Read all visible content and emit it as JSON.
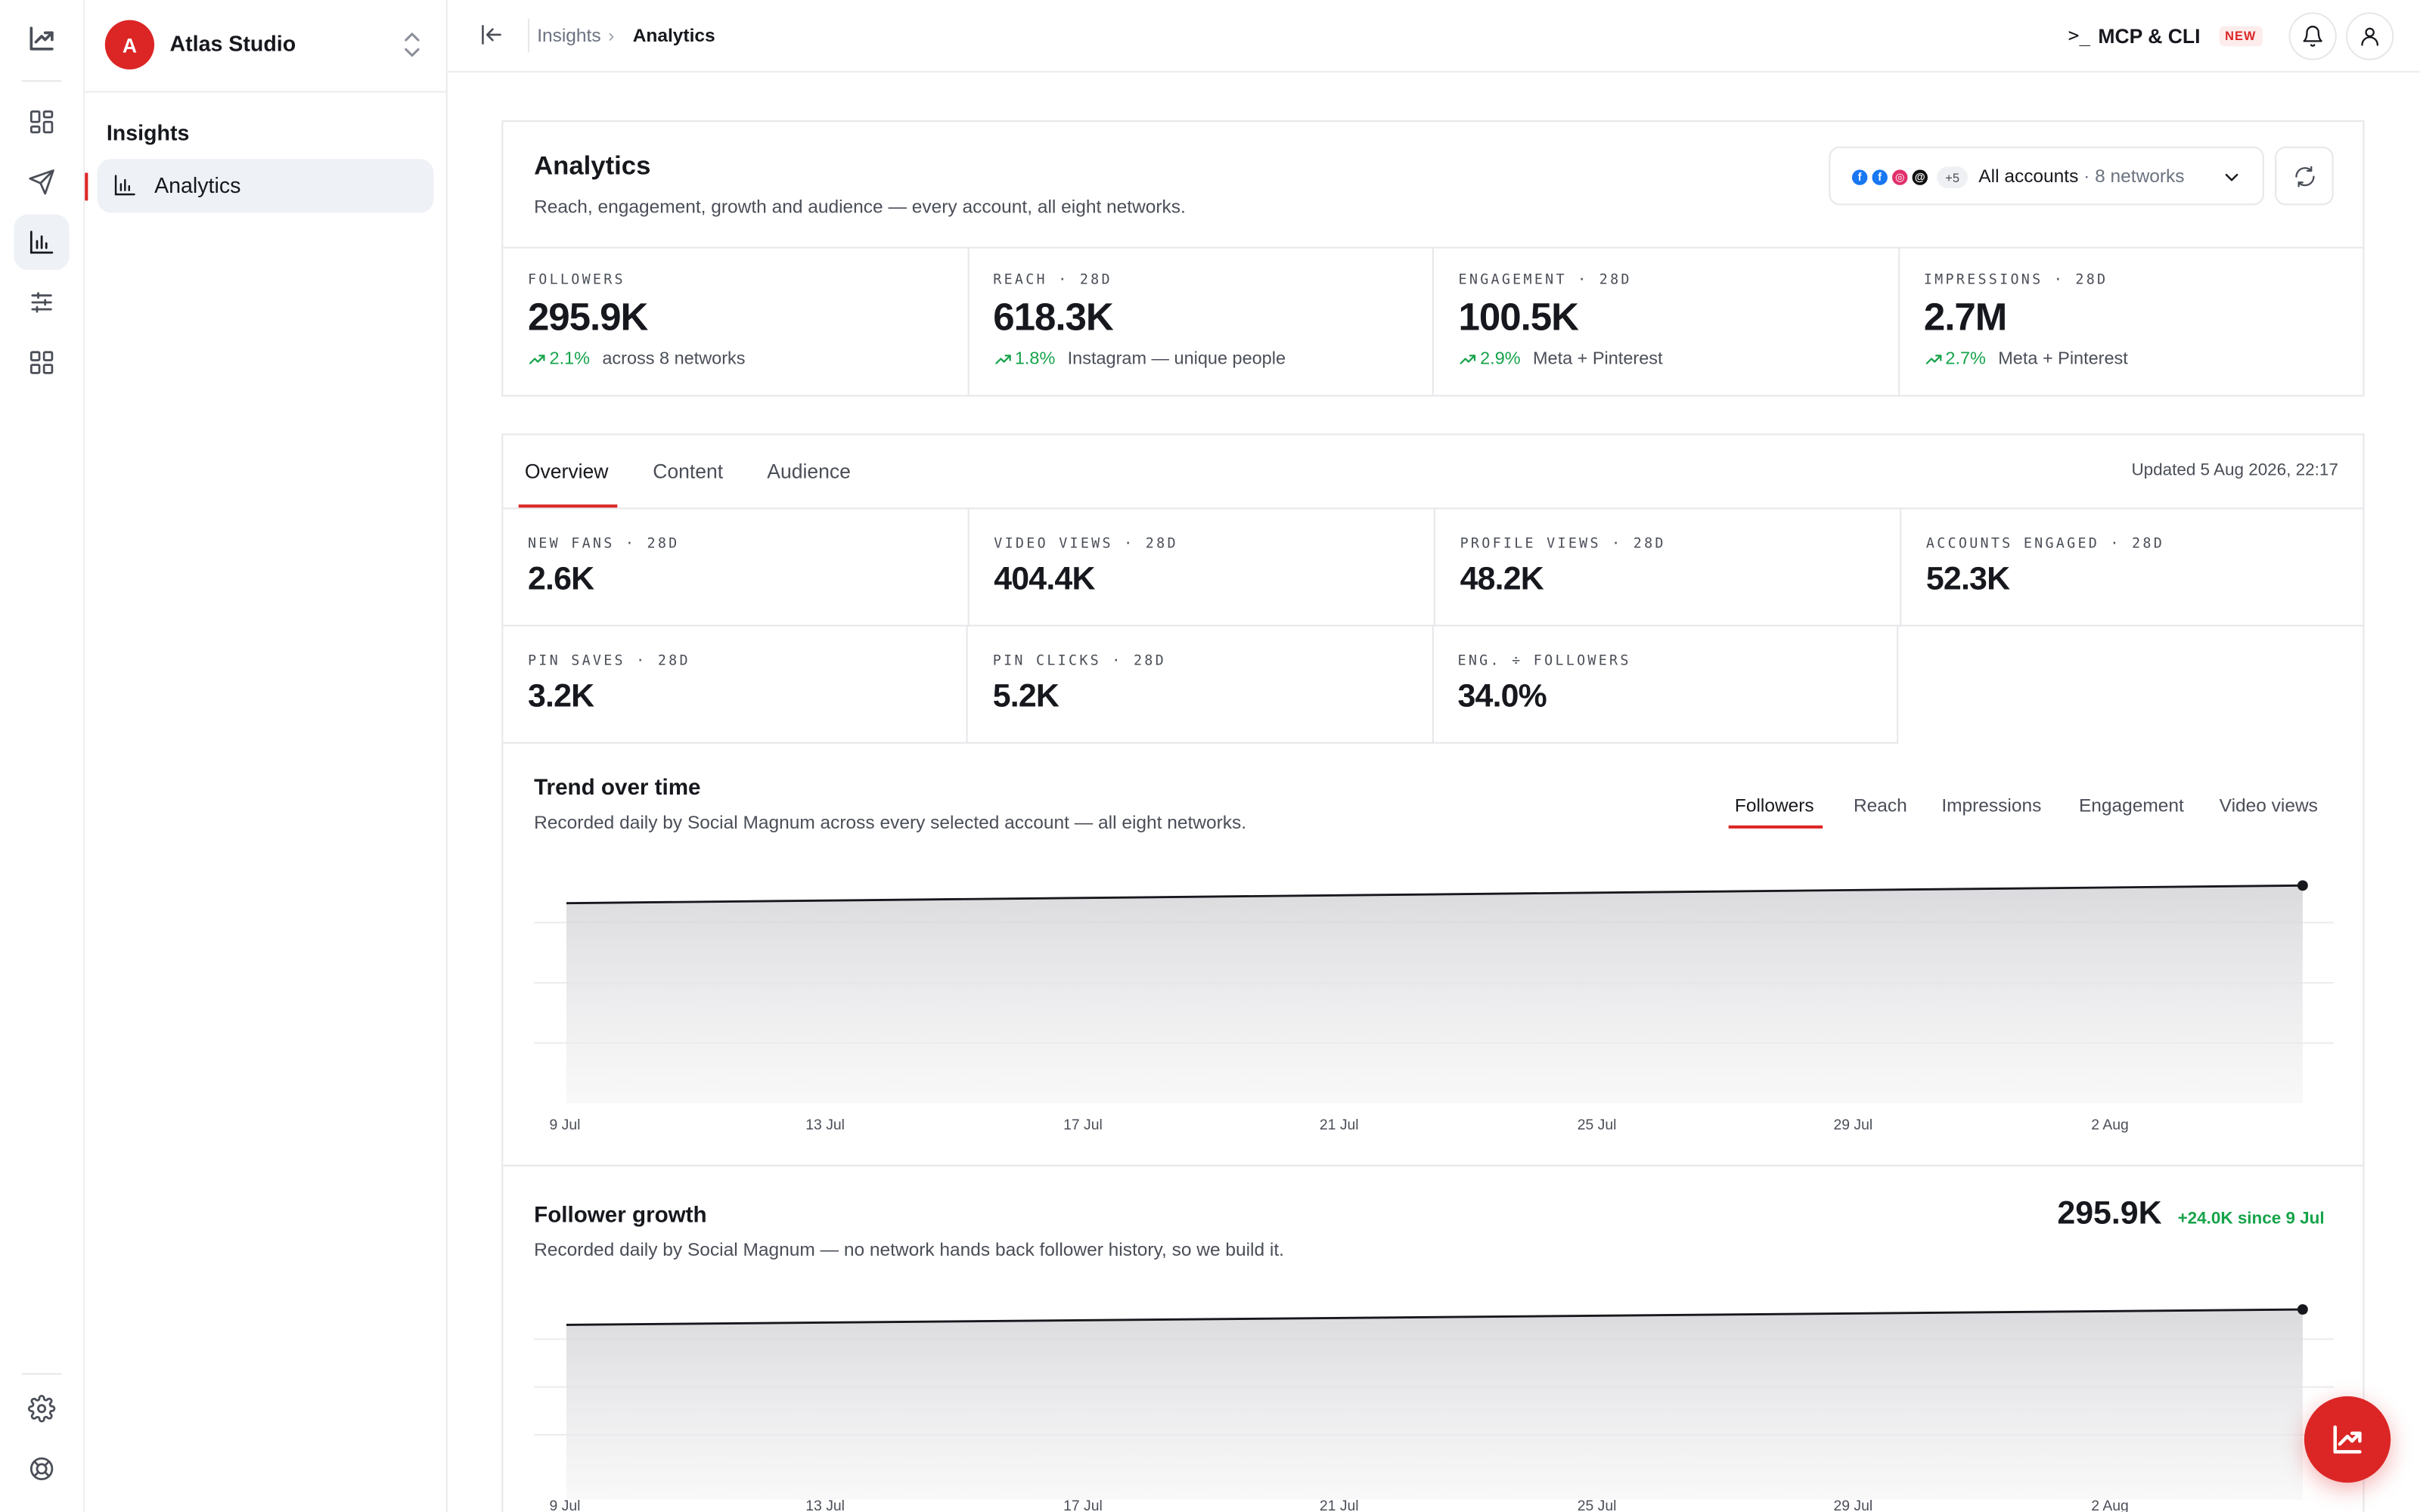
{
  "workspace": {
    "name": "Atlas Studio",
    "initial": "A"
  },
  "sidebar": {
    "section": "Insights",
    "active_item": "Analytics"
  },
  "rail": {
    "icons": [
      "logo-trend-icon",
      "dashboard-icon",
      "send-icon",
      "analytics-icon",
      "sliders-icon",
      "apps-icon",
      "gear-icon",
      "help-lifebuoy-icon"
    ]
  },
  "header": {
    "breadcrumb": [
      "Insights",
      "Analytics"
    ],
    "breadcrumb_separator": "›",
    "mcp_prompt": ">_",
    "mcp_label": "MCP & CLI",
    "mcp_badge": "NEW"
  },
  "analytics": {
    "title": "Analytics",
    "subtitle": "Reach, engagement, growth and audience — every account, all eight networks.",
    "account_selector": {
      "label": "All accounts",
      "meta": " · 8 networks",
      "extra_count": "+5",
      "icons": [
        {
          "glyph": "f",
          "color": "#1877f2"
        },
        {
          "glyph": "f",
          "color": "#1877f2"
        },
        {
          "glyph": "◎",
          "color": "#e1306c"
        },
        {
          "glyph": "@",
          "color": "#111111"
        }
      ]
    },
    "kpis": [
      {
        "label": "FOLLOWERS",
        "value": "295.9K",
        "delta": "2.1%",
        "note": "across 8 networks"
      },
      {
        "label": "REACH · 28D",
        "value": "618.3K",
        "delta": "1.8%",
        "note": "Instagram — unique people"
      },
      {
        "label": "ENGAGEMENT · 28D",
        "value": "100.5K",
        "delta": "2.9%",
        "note": "Meta + Pinterest"
      },
      {
        "label": "IMPRESSIONS · 28D",
        "value": "2.7M",
        "delta": "2.7%",
        "note": "Meta + Pinterest"
      }
    ]
  },
  "tabs": {
    "items": [
      "Overview",
      "Content",
      "Audience"
    ],
    "active": "Overview",
    "updated": "Updated 5 Aug 2026, 22:17"
  },
  "metrics_grid": [
    {
      "label": "NEW FANS · 28D",
      "value": "2.6K"
    },
    {
      "label": "VIDEO VIEWS · 28D",
      "value": "404.4K"
    },
    {
      "label": "PROFILE VIEWS · 28D",
      "value": "48.2K"
    },
    {
      "label": "ACCOUNTS ENGAGED · 28D",
      "value": "52.3K"
    },
    {
      "label": "PIN SAVES · 28D",
      "value": "3.2K"
    },
    {
      "label": "PIN CLICKS · 28D",
      "value": "5.2K"
    },
    {
      "label": "ENG. ÷ FOLLOWERS",
      "value": "34.0%"
    }
  ],
  "trend": {
    "title": "Trend over time",
    "subtitle": "Recorded daily by Social Magnum across every selected account — all eight networks.",
    "metric_tabs": [
      "Followers",
      "Reach",
      "Impressions",
      "Engagement",
      "Video views"
    ],
    "active_metric": "Followers"
  },
  "growth": {
    "title": "Follower growth",
    "subtitle": "Recorded daily by Social Magnum — no network hands back follower history, so we build it.",
    "value": "295.9K",
    "delta": "+24.0K since 9 Jul"
  },
  "chart_data": [
    {
      "type": "area",
      "title": "Trend over time",
      "x_ticks": [
        "9 Jul",
        "13 Jul",
        "17 Jul",
        "21 Jul",
        "25 Jul",
        "29 Jul",
        "2 Aug"
      ],
      "x": [
        "9 Jul",
        "5 Aug"
      ],
      "series": [
        {
          "values": [
            271.9,
            295.9
          ]
        }
      ],
      "ylim": [
        0,
        300
      ],
      "grid": true,
      "end_marker": true
    },
    {
      "type": "area",
      "title": "Follower growth",
      "x_ticks": [
        "9 Jul",
        "13 Jul",
        "17 Jul",
        "21 Jul",
        "25 Jul",
        "29 Jul",
        "2 Aug"
      ],
      "x": [
        "9 Jul",
        "5 Aug"
      ],
      "series": [
        {
          "values": [
            271.9,
            295.9
          ]
        }
      ],
      "ylim": [
        0,
        300
      ],
      "grid": true,
      "end_marker": true
    }
  ]
}
